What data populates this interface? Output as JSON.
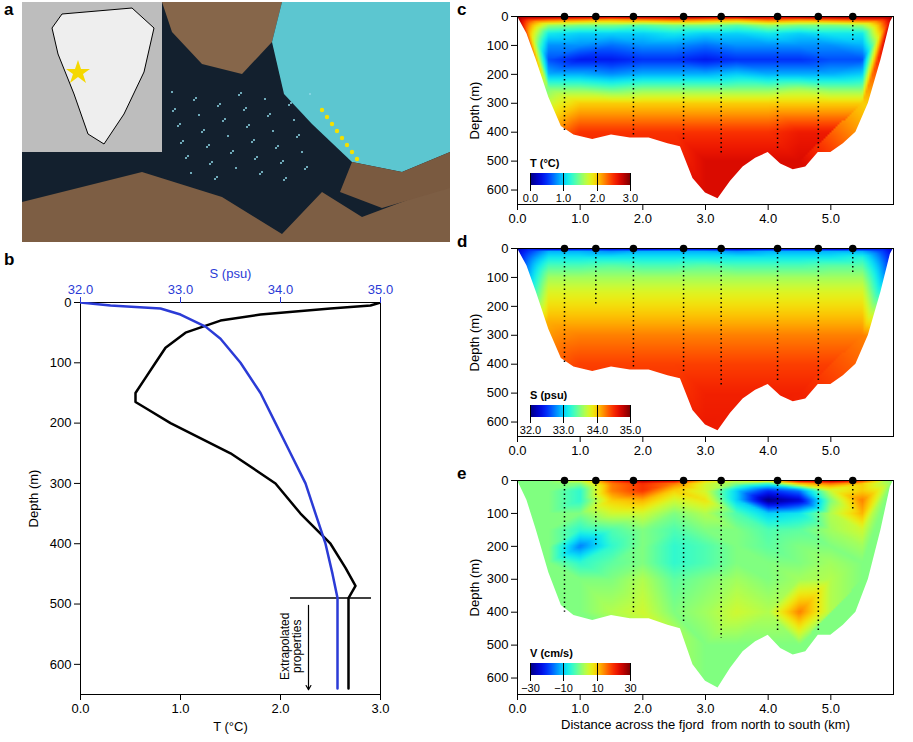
{
  "map": {
    "panel": "a"
  },
  "chart_data": [
    {
      "panel": "b",
      "type": "line",
      "xlabel": "T (°C)",
      "xlim": [
        0,
        3
      ],
      "xticks": [
        0,
        1,
        2,
        3
      ],
      "x2label": "S (psu)",
      "x2lim": [
        32,
        35
      ],
      "x2ticks": [
        32,
        33,
        34,
        35
      ],
      "ylabel": "Depth (m)",
      "ylim": [
        0,
        650
      ],
      "yticks": [
        0,
        100,
        200,
        300,
        400,
        500,
        600
      ],
      "series": [
        {
          "color": "#000000",
          "depth": [
            0,
            5,
            10,
            20,
            30,
            50,
            75,
            100,
            125,
            150,
            165,
            175,
            200,
            250,
            300,
            350,
            400,
            440,
            470,
            490,
            640
          ],
          "values": [
            3.0,
            2.9,
            2.5,
            1.8,
            1.4,
            1.05,
            0.85,
            0.75,
            0.65,
            0.55,
            0.55,
            0.65,
            0.9,
            1.5,
            1.95,
            2.2,
            2.5,
            2.65,
            2.75,
            2.68,
            2.68
          ]
        },
        {
          "color": "#2b3bd6",
          "axis": "x2",
          "depth": [
            0,
            5,
            10,
            20,
            40,
            60,
            100,
            150,
            200,
            250,
            300,
            350,
            400,
            450,
            490,
            640
          ],
          "values": [
            32.0,
            32.3,
            32.8,
            33.0,
            33.25,
            33.4,
            33.6,
            33.8,
            33.95,
            34.1,
            34.25,
            34.35,
            34.45,
            34.52,
            34.57,
            34.57
          ]
        }
      ],
      "annotation": {
        "text": "Extrapolated properties",
        "depth": 490
      }
    },
    {
      "panel": "c",
      "type": "heatmap",
      "ylabel": "Depth (m)",
      "xlim": [
        0,
        6
      ],
      "xticks": [
        0,
        1,
        2,
        3,
        4,
        5
      ],
      "ylim": [
        0,
        650
      ],
      "yticks": [
        0,
        100,
        200,
        300,
        400,
        500,
        600
      ],
      "x": [
        0,
        0.5,
        1,
        1.5,
        2,
        2.5,
        3,
        3.5,
        4,
        4.5,
        5,
        5.5,
        6
      ],
      "depth": [
        0,
        10,
        30,
        60,
        100,
        150,
        200,
        250,
        300,
        400,
        500,
        600
      ],
      "values": [
        [
          3.0,
          3.0,
          2.9,
          2.9,
          3.0,
          3.0,
          3.0,
          3.0,
          2.9,
          3.0,
          3.0,
          3.0,
          3.0
        ],
        [
          null,
          2.4,
          2.3,
          2.2,
          2.3,
          2.4,
          2.3,
          2.2,
          2.4,
          2.3,
          2.4,
          2.5,
          null
        ],
        [
          null,
          1.6,
          1.5,
          1.5,
          1.4,
          1.5,
          1.5,
          1.4,
          1.6,
          1.5,
          1.5,
          1.6,
          null
        ],
        [
          null,
          1.1,
          1.0,
          1.0,
          1.0,
          1.1,
          1.0,
          1.0,
          1.1,
          1.0,
          1.1,
          1.1,
          null
        ],
        [
          null,
          0.8,
          0.8,
          0.7,
          0.8,
          0.8,
          0.7,
          0.8,
          0.8,
          0.8,
          0.8,
          0.9,
          null
        ],
        [
          null,
          0.6,
          0.4,
          0.4,
          0.5,
          0.5,
          0.4,
          0.5,
          0.5,
          0.5,
          0.6,
          0.6,
          null
        ],
        [
          null,
          0.9,
          0.9,
          0.8,
          0.9,
          0.9,
          0.9,
          1.0,
          0.9,
          0.9,
          0.9,
          1.0,
          null
        ],
        [
          null,
          1.5,
          1.5,
          1.4,
          1.5,
          1.5,
          1.5,
          1.5,
          1.5,
          1.6,
          1.5,
          1.5,
          null
        ],
        [
          null,
          null,
          2.0,
          2.0,
          2.0,
          2.0,
          2.0,
          2.0,
          2.0,
          2.0,
          2.0,
          2.0,
          null
        ],
        [
          null,
          null,
          2.5,
          2.5,
          2.5,
          2.5,
          2.5,
          2.5,
          2.5,
          2.6,
          2.6,
          null,
          null
        ],
        [
          null,
          null,
          null,
          null,
          null,
          null,
          2.7,
          2.7,
          null,
          2.7,
          null,
          null,
          null
        ],
        [
          null,
          null,
          null,
          null,
          null,
          null,
          2.7,
          null,
          null,
          null,
          null,
          null,
          null
        ]
      ],
      "colorbar": {
        "label": "T (°C)",
        "range": [
          0,
          3
        ],
        "ticks": [
          0,
          1,
          2,
          3
        ]
      },
      "bathymetry": {
        "x": [
          0,
          0.15,
          0.3,
          0.5,
          0.7,
          0.9,
          1.2,
          1.5,
          1.8,
          2.1,
          2.4,
          2.6,
          2.8,
          3.0,
          3.2,
          3.4,
          3.6,
          3.8,
          4.0,
          4.2,
          4.4,
          4.6,
          4.8,
          5.0,
          5.2,
          5.4,
          5.6,
          5.8,
          5.95,
          6
        ],
        "depth": [
          0,
          60,
          150,
          280,
          380,
          410,
          425,
          410,
          420,
          420,
          440,
          450,
          560,
          610,
          630,
          570,
          520,
          490,
          470,
          510,
          530,
          520,
          470,
          470,
          440,
          400,
          300,
          150,
          20,
          0
        ]
      },
      "stations": {
        "x": [
          0.75,
          1.25,
          1.85,
          2.65,
          3.25,
          4.15,
          4.8,
          5.35
        ],
        "depth": [
          400,
          200,
          410,
          430,
          480,
          460,
          460,
          90
        ]
      }
    },
    {
      "panel": "d",
      "type": "heatmap",
      "ylabel": "Depth (m)",
      "xlim": [
        0,
        6
      ],
      "xticks": [
        0,
        1,
        2,
        3,
        4,
        5
      ],
      "ylim": [
        0,
        650
      ],
      "yticks": [
        0,
        100,
        200,
        300,
        400,
        500,
        600
      ],
      "x": [
        0,
        0.5,
        1,
        1.5,
        2,
        2.5,
        3,
        3.5,
        4,
        4.5,
        5,
        5.5,
        6
      ],
      "depth": [
        0,
        10,
        30,
        60,
        100,
        150,
        200,
        250,
        300,
        400,
        500,
        600
      ],
      "values": [
        [
          32.2,
          32.1,
          32.2,
          32.2,
          32.1,
          32.2,
          32.2,
          32.1,
          32.2,
          32.2,
          32.1,
          32.2,
          32.2
        ],
        [
          null,
          32.9,
          32.9,
          32.8,
          32.9,
          32.9,
          32.9,
          32.8,
          32.9,
          32.9,
          32.9,
          32.9,
          null
        ],
        [
          null,
          33.1,
          33.1,
          33.1,
          33.1,
          33.1,
          33.1,
          33.1,
          33.1,
          33.1,
          33.1,
          33.2,
          null
        ],
        [
          null,
          33.35,
          33.35,
          33.4,
          33.35,
          33.35,
          33.4,
          33.35,
          33.35,
          33.35,
          33.4,
          33.4,
          null
        ],
        [
          null,
          33.6,
          33.6,
          33.6,
          33.6,
          33.6,
          33.6,
          33.6,
          33.6,
          33.6,
          33.6,
          33.6,
          null
        ],
        [
          null,
          33.8,
          33.8,
          33.8,
          33.8,
          33.8,
          33.8,
          33.8,
          33.8,
          33.8,
          33.8,
          33.8,
          null
        ],
        [
          null,
          33.95,
          33.95,
          33.95,
          33.95,
          33.95,
          33.95,
          33.95,
          33.95,
          33.95,
          33.95,
          33.95,
          null
        ],
        [
          null,
          34.1,
          34.1,
          34.1,
          34.1,
          34.1,
          34.1,
          34.1,
          34.1,
          34.1,
          34.1,
          34.1,
          null
        ],
        [
          null,
          null,
          34.25,
          34.25,
          34.25,
          34.25,
          34.25,
          34.25,
          34.25,
          34.25,
          34.25,
          34.25,
          null
        ],
        [
          null,
          null,
          34.45,
          34.45,
          34.45,
          34.45,
          34.45,
          34.45,
          34.45,
          34.45,
          34.45,
          null,
          null
        ],
        [
          null,
          null,
          null,
          null,
          null,
          null,
          34.57,
          34.57,
          null,
          34.57,
          null,
          null,
          null
        ],
        [
          null,
          null,
          null,
          null,
          null,
          null,
          34.6,
          null,
          null,
          null,
          null,
          null,
          null
        ]
      ],
      "colorbar": {
        "label": "S (psu)",
        "range": [
          32,
          35
        ],
        "ticks": [
          32,
          33,
          34,
          35
        ]
      },
      "bathymetry": {
        "x": [
          0,
          0.15,
          0.3,
          0.5,
          0.7,
          0.9,
          1.2,
          1.5,
          1.8,
          2.1,
          2.4,
          2.6,
          2.8,
          3.0,
          3.2,
          3.4,
          3.6,
          3.8,
          4.0,
          4.2,
          4.4,
          4.6,
          4.8,
          5.0,
          5.2,
          5.4,
          5.6,
          5.8,
          5.95,
          6
        ],
        "depth": [
          0,
          60,
          150,
          280,
          380,
          410,
          425,
          410,
          420,
          420,
          440,
          450,
          560,
          610,
          630,
          570,
          520,
          490,
          470,
          510,
          530,
          520,
          470,
          470,
          440,
          400,
          300,
          150,
          20,
          0
        ]
      },
      "stations": {
        "x": [
          0.75,
          1.25,
          1.85,
          2.65,
          3.25,
          4.15,
          4.8,
          5.35
        ],
        "depth": [
          400,
          200,
          410,
          430,
          480,
          460,
          460,
          90
        ]
      }
    },
    {
      "panel": "e",
      "type": "heatmap",
      "xlabel": "Distance across the fjord  from north to south (km)",
      "ylabel": "Depth (m)",
      "xlim": [
        0,
        6
      ],
      "xticks": [
        0,
        1,
        2,
        3,
        4,
        5
      ],
      "ylim": [
        0,
        650
      ],
      "yticks": [
        0,
        100,
        200,
        300,
        400,
        500,
        600
      ],
      "x": [
        0,
        0.5,
        1,
        1.5,
        2,
        2.5,
        3,
        3.5,
        4,
        4.5,
        5,
        5.5,
        6
      ],
      "depth": [
        0,
        10,
        30,
        60,
        100,
        150,
        200,
        250,
        300,
        400,
        500,
        600
      ],
      "values": [
        [
          0,
          0,
          5,
          20,
          28,
          25,
          10,
          5,
          10,
          25,
          28,
          20,
          0
        ],
        [
          null,
          0,
          0,
          15,
          20,
          15,
          5,
          0,
          -5,
          10,
          15,
          10,
          null
        ],
        [
          null,
          0,
          -5,
          15,
          20,
          10,
          5,
          -10,
          -20,
          -15,
          5,
          10,
          null
        ],
        [
          null,
          0,
          -5,
          10,
          12,
          5,
          8,
          -10,
          -30,
          -25,
          0,
          15,
          null
        ],
        [
          null,
          0,
          0,
          5,
          5,
          0,
          3,
          -3,
          -10,
          -8,
          3,
          12,
          null
        ],
        [
          null,
          0,
          -5,
          -3,
          0,
          -3,
          0,
          0,
          -3,
          -2,
          2,
          5,
          null
        ],
        [
          null,
          0,
          -15,
          -5,
          0,
          -5,
          -3,
          0,
          -2,
          0,
          0,
          2,
          null
        ],
        [
          null,
          0,
          -5,
          -2,
          0,
          -5,
          -3,
          0,
          0,
          0,
          2,
          0,
          null
        ],
        [
          null,
          null,
          0,
          0,
          3,
          -2,
          0,
          2,
          0,
          2,
          3,
          0,
          null
        ],
        [
          null,
          null,
          0,
          3,
          5,
          0,
          2,
          5,
          3,
          15,
          3,
          null,
          null
        ],
        [
          null,
          null,
          null,
          null,
          null,
          null,
          0,
          0,
          null,
          0,
          null,
          null,
          null
        ],
        [
          null,
          null,
          null,
          null,
          null,
          null,
          0,
          null,
          null,
          null,
          null,
          null,
          null
        ]
      ],
      "colorbar": {
        "label": "V (cm/s)",
        "range": [
          -30,
          30
        ],
        "ticks": [
          -30,
          -10,
          10,
          30
        ]
      },
      "bathymetry": {
        "x": [
          0,
          0.15,
          0.3,
          0.5,
          0.7,
          0.9,
          1.2,
          1.5,
          1.8,
          2.1,
          2.4,
          2.6,
          2.8,
          3.0,
          3.2,
          3.4,
          3.6,
          3.8,
          4.0,
          4.2,
          4.4,
          4.6,
          4.8,
          5.0,
          5.2,
          5.4,
          5.6,
          5.8,
          5.95,
          6
        ],
        "depth": [
          0,
          60,
          150,
          280,
          380,
          410,
          425,
          410,
          420,
          420,
          440,
          450,
          560,
          610,
          630,
          570,
          520,
          490,
          470,
          510,
          530,
          520,
          470,
          470,
          440,
          400,
          300,
          150,
          20,
          0
        ]
      },
      "stations": {
        "x": [
          0.75,
          1.25,
          1.85,
          2.65,
          3.25,
          4.15,
          4.8,
          5.35
        ],
        "depth": [
          400,
          200,
          410,
          430,
          480,
          460,
          460,
          90
        ]
      }
    }
  ]
}
